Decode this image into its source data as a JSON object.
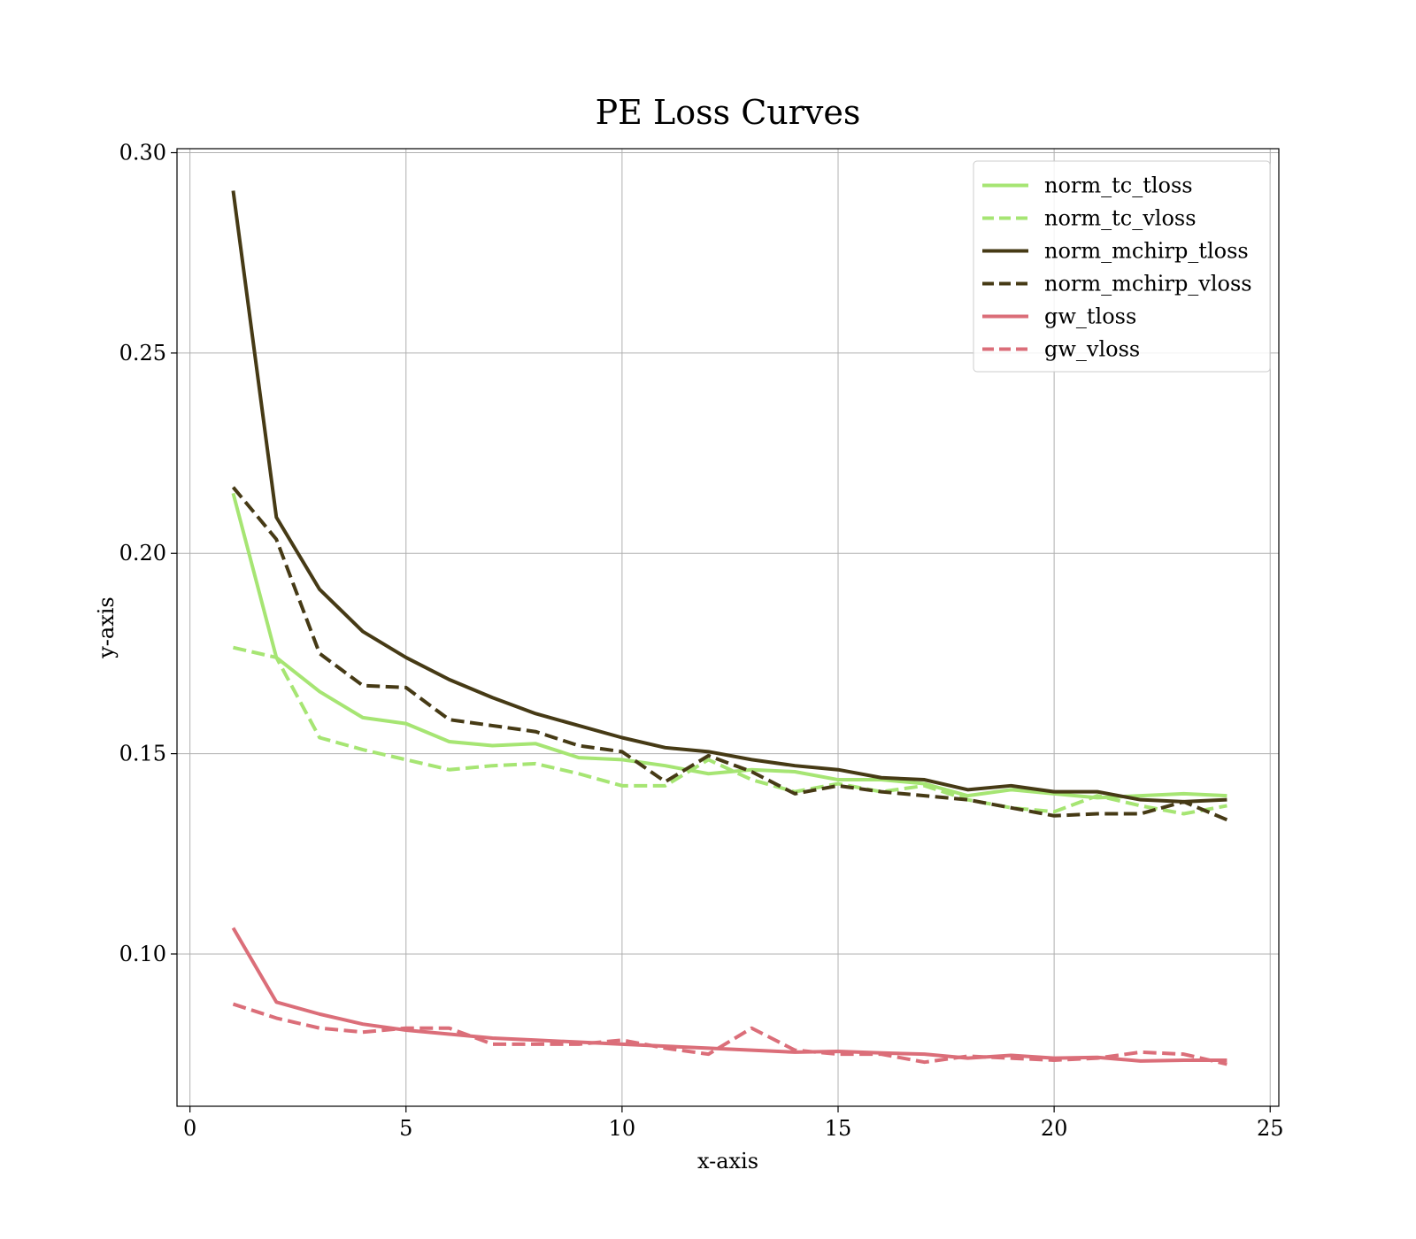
{
  "chart_data": {
    "type": "line",
    "title": "PE Loss Curves",
    "xlabel": "x-axis",
    "ylabel": "y-axis",
    "xlim": [
      -0.3,
      25.2
    ],
    "ylim": [
      0.062,
      0.301
    ],
    "xticks": [
      0,
      5,
      10,
      15,
      20,
      25
    ],
    "xtick_labels": [
      "0",
      "5",
      "10",
      "15",
      "20",
      "25"
    ],
    "yticks": [
      0.1,
      0.15,
      0.2,
      0.25,
      0.3
    ],
    "ytick_labels": [
      "0.10",
      "0.15",
      "0.20",
      "0.25",
      "0.30"
    ],
    "grid": true,
    "legend_position": "top-right",
    "x": [
      1,
      2,
      3,
      4,
      5,
      6,
      7,
      8,
      9,
      10,
      11,
      12,
      13,
      14,
      15,
      16,
      17,
      18,
      19,
      20,
      21,
      22,
      23,
      24
    ],
    "series": [
      {
        "name": "norm_tc_tloss",
        "color": "#a6e573",
        "dash": "solid",
        "values": [
          0.215,
          0.174,
          0.1655,
          0.159,
          0.1575,
          0.153,
          0.152,
          0.1525,
          0.149,
          0.1485,
          0.147,
          0.145,
          0.146,
          0.1455,
          0.1435,
          0.1435,
          0.1425,
          0.1395,
          0.141,
          0.14,
          0.139,
          0.1395,
          0.14,
          0.1395
        ]
      },
      {
        "name": "norm_tc_vloss",
        "color": "#a6e573",
        "dash": "dashed",
        "values": [
          0.1765,
          0.174,
          0.154,
          0.151,
          0.1485,
          0.146,
          0.147,
          0.1475,
          0.145,
          0.142,
          0.142,
          0.1485,
          0.1435,
          0.1405,
          0.1425,
          0.1405,
          0.142,
          0.1385,
          0.1365,
          0.1355,
          0.1395,
          0.137,
          0.135,
          0.137
        ]
      },
      {
        "name": "norm_mchirp_tloss",
        "color": "#463a15",
        "dash": "solid",
        "values": [
          0.2905,
          0.209,
          0.191,
          0.1805,
          0.174,
          0.1685,
          0.164,
          0.16,
          0.157,
          0.154,
          0.1515,
          0.1505,
          0.1485,
          0.147,
          0.146,
          0.144,
          0.1435,
          0.141,
          0.142,
          0.1405,
          0.1405,
          0.1385,
          0.138,
          0.1385
        ]
      },
      {
        "name": "norm_mchirp_vloss",
        "color": "#463a15",
        "dash": "dashed",
        "values": [
          0.2165,
          0.2035,
          0.175,
          0.167,
          0.1665,
          0.1585,
          0.157,
          0.1555,
          0.152,
          0.1505,
          0.143,
          0.1495,
          0.1455,
          0.14,
          0.142,
          0.1405,
          0.1395,
          0.1385,
          0.1365,
          0.1345,
          0.135,
          0.135,
          0.138,
          0.1335
        ]
      },
      {
        "name": "gw_tloss",
        "color": "#db6e79",
        "dash": "solid",
        "values": [
          0.1065,
          0.088,
          0.085,
          0.0825,
          0.081,
          0.08,
          0.079,
          0.0785,
          0.078,
          0.0775,
          0.077,
          0.0765,
          0.076,
          0.0755,
          0.0757,
          0.0753,
          0.075,
          0.074,
          0.0747,
          0.074,
          0.0742,
          0.0733,
          0.0735,
          0.0735
        ]
      },
      {
        "name": "gw_vloss",
        "color": "#db6e79",
        "dash": "dashed",
        "values": [
          0.0875,
          0.084,
          0.0815,
          0.0805,
          0.0815,
          0.0815,
          0.0775,
          0.0775,
          0.0775,
          0.0785,
          0.0765,
          0.075,
          0.0815,
          0.076,
          0.075,
          0.075,
          0.073,
          0.0745,
          0.074,
          0.0735,
          0.074,
          0.0755,
          0.075,
          0.0725
        ]
      }
    ]
  }
}
